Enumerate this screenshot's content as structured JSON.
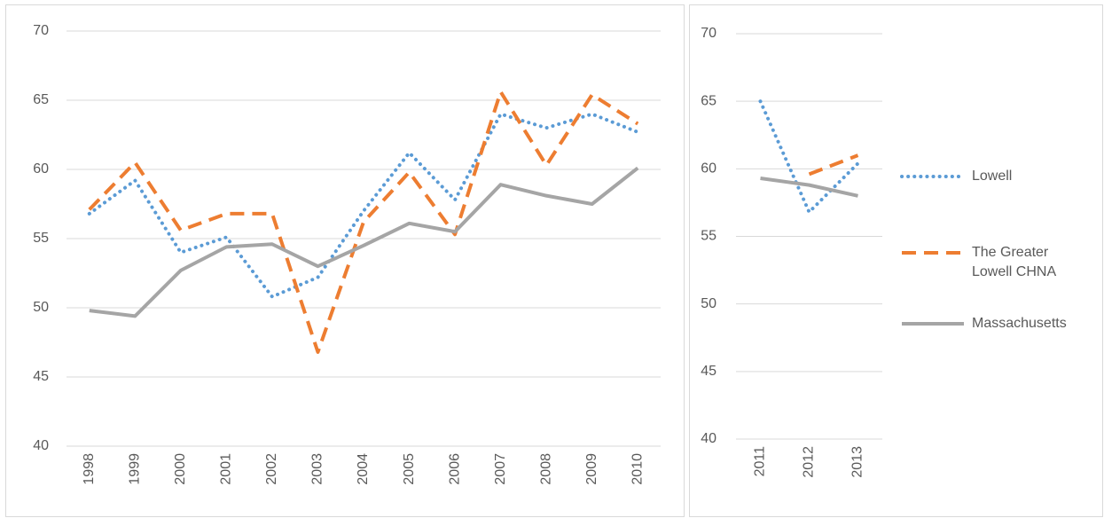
{
  "chart_data": [
    {
      "type": "line",
      "categories": [
        "1998",
        "1999",
        "2000",
        "2001",
        "2002",
        "2003",
        "2004",
        "2005",
        "2006",
        "2007",
        "2008",
        "2009",
        "2010"
      ],
      "series": [
        {
          "color": "#5b9bd5",
          "dash": "dotted",
          "values": [
            56.8,
            59.2,
            54,
            55.1,
            50.8,
            52.2,
            57,
            61.2,
            57.8,
            64,
            63,
            64,
            62.7
          ]
        },
        {
          "color": "#ed7d31",
          "dash": "dashed",
          "values": [
            57.1,
            60.5,
            55.6,
            56.8,
            56.8,
            46.8,
            56.2,
            59.8,
            55.3,
            65.6,
            60.3,
            65.4,
            63.3
          ]
        },
        {
          "color": "#a5a5a5",
          "dash": "solid",
          "values": [
            49.8,
            49.4,
            52.7,
            54.4,
            54.6,
            53,
            54.5,
            56.1,
            55.5,
            58.9,
            58.1,
            57.5,
            60.1
          ]
        }
      ],
      "ylim": [
        40,
        70
      ],
      "yticks": [
        40,
        45,
        50,
        55,
        60,
        65,
        70
      ],
      "grid": true
    },
    {
      "type": "line",
      "categories": [
        "2011",
        "2012",
        "2013"
      ],
      "series": [
        {
          "name": "Lowell",
          "color": "#5b9bd5",
          "dash": "dotted",
          "values": [
            65,
            56.8,
            60.4
          ]
        },
        {
          "name": "The Greater Lowell CHNA",
          "color": "#ed7d31",
          "dash": "dashed",
          "values": [
            null,
            59.6,
            61
          ]
        },
        {
          "name": "Massachusetts",
          "color": "#a5a5a5",
          "dash": "solid",
          "values": [
            59.3,
            58.8,
            58
          ]
        }
      ],
      "ylim": [
        40,
        70
      ],
      "yticks": [
        40,
        45,
        50,
        55,
        60,
        65,
        70
      ],
      "grid": true,
      "legend": "right"
    }
  ]
}
